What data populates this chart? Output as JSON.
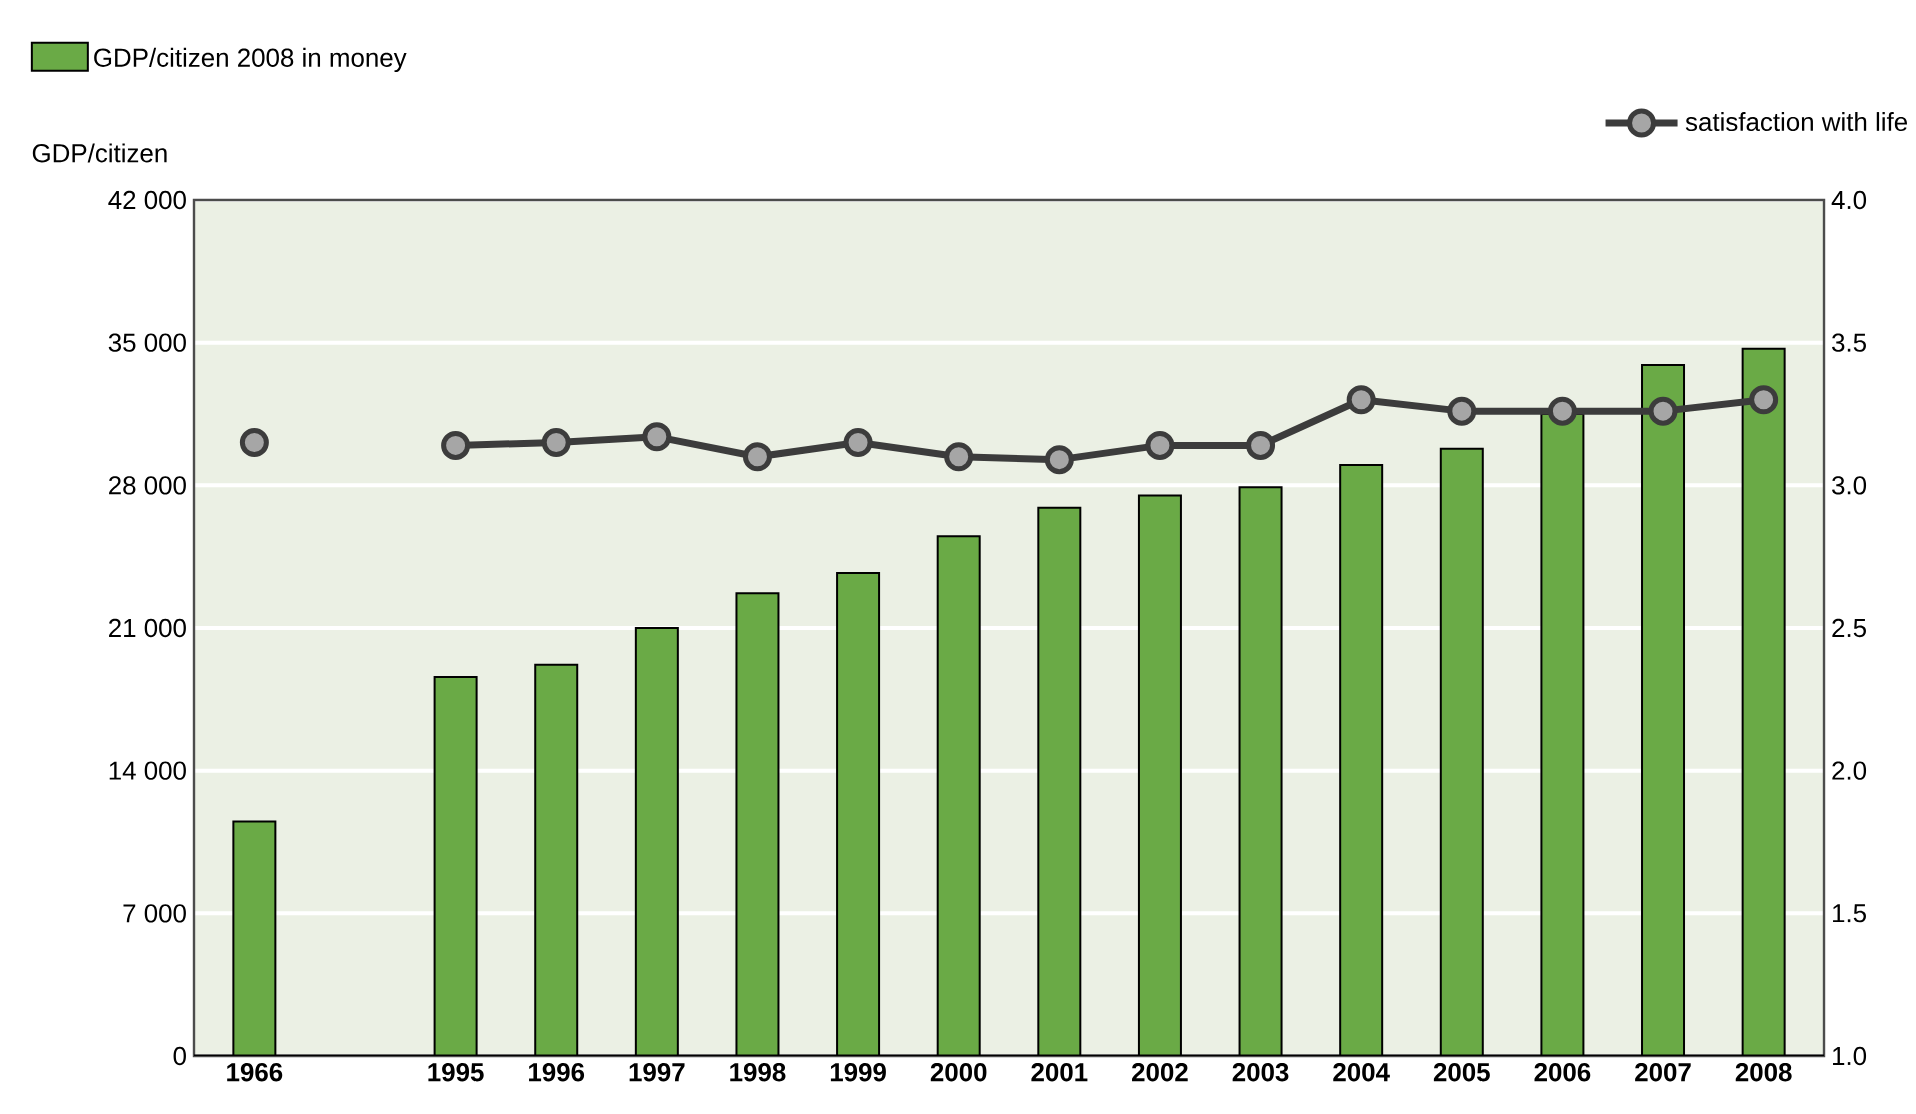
{
  "chart_data": {
    "type": "bar",
    "categories": [
      "1966",
      null,
      "1995",
      "1996",
      "1997",
      "1998",
      "1999",
      "2000",
      "2001",
      "2002",
      "2003",
      "2004",
      "2005",
      "2006",
      "2007",
      "2008"
    ],
    "series": [
      {
        "name": "GDP/citizen 2008 in money",
        "color": "#6aaa46",
        "values": [
          11500,
          null,
          18600,
          19200,
          21000,
          22700,
          23700,
          25500,
          26900,
          27500,
          27900,
          29000,
          29800,
          31500,
          33900,
          34700
        ]
      },
      {
        "name": "satisfaction with life",
        "type": "line",
        "axis": "y2",
        "color": "#3c3c3c",
        "values": [
          3.15,
          null,
          3.14,
          3.15,
          3.17,
          3.1,
          3.15,
          3.1,
          3.09,
          3.14,
          3.14,
          3.3,
          3.26,
          3.26,
          3.26,
          3.3
        ]
      }
    ],
    "ylabel": "GDP/citizen",
    "ylim": [
      0,
      42000
    ],
    "yticks": [
      0,
      {
        "value": 7000,
        "label": "7 000"
      },
      {
        "value": 14000,
        "label": "14 000"
      },
      {
        "value": 21000,
        "label": "21 000"
      },
      {
        "value": 28000,
        "label": "28 000"
      },
      {
        "value": 35000,
        "label": "35 000"
      },
      {
        "value": 42000,
        "label": "42 000"
      }
    ],
    "y2lim": [
      1.0,
      4.0
    ],
    "y2ticks": [
      {
        "value": 1,
        "label": "1.0"
      },
      1.5,
      {
        "value": 2,
        "label": "2.0"
      },
      2.5,
      {
        "value": 3,
        "label": "3.0"
      },
      3.5,
      {
        "value": 4,
        "label": "4.0"
      }
    ],
    "grid": "y",
    "legend": "top",
    "marker": "circle",
    "line_style": "solid"
  }
}
